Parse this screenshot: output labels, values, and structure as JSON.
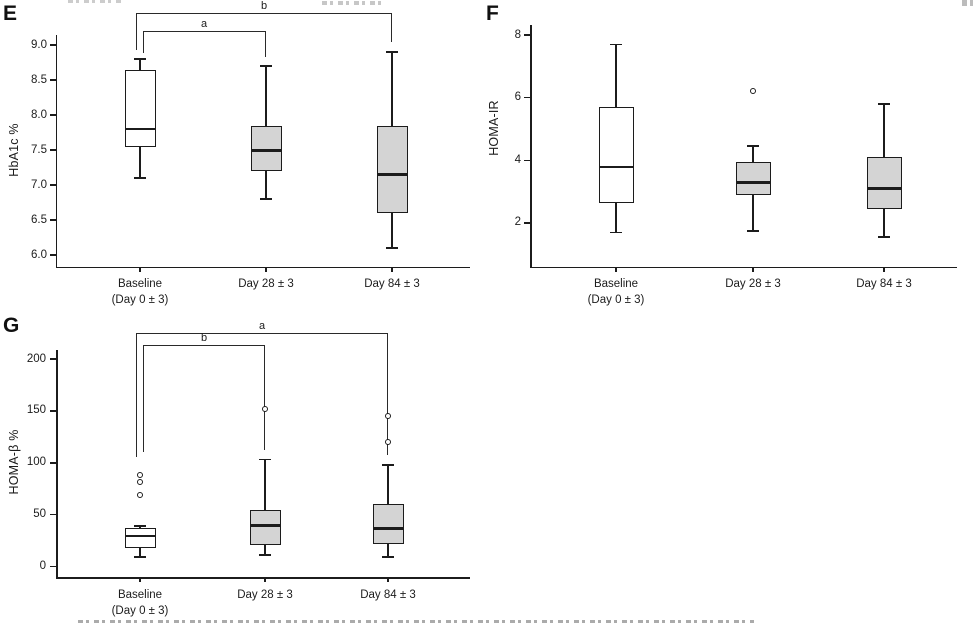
{
  "figure": {
    "style": {
      "background": "#ffffff",
      "line_color": "#1c1c1c",
      "box_fill_white": "#ffffff",
      "box_fill_gray": "#d4d4d4"
    }
  },
  "chart_data": [
    {
      "type": "box",
      "panel_label": "E",
      "title": "",
      "ylabel": "HbA1c %",
      "ylim": [
        5.85,
        9.15
      ],
      "grid": false,
      "y_ticks": [
        9.0,
        8.5,
        8.0,
        7.5,
        7.0,
        6.5,
        6.0
      ],
      "y_tick_labels": [
        "9.0",
        "8.5",
        "8.0",
        "7.5",
        "7.0",
        "6.5",
        "6.0"
      ],
      "categories": [
        {
          "lines": [
            "Baseline",
            "(Day 0 ± 3)"
          ]
        },
        {
          "lines": [
            "Day 28 ± 3"
          ]
        },
        {
          "lines": [
            "Day 84 ± 3"
          ]
        }
      ],
      "boxes": [
        {
          "category": "Baseline (Day 0 ± 3)",
          "fill": "#ffffff",
          "whisker_low": 7.1,
          "q1": 7.55,
          "median": 7.8,
          "q3": 8.65,
          "whisker_high": 8.8,
          "outliers": []
        },
        {
          "category": "Day 28 ± 3",
          "fill": "#d4d4d4",
          "whisker_low": 6.8,
          "q1": 7.2,
          "median": 7.5,
          "q3": 7.85,
          "whisker_high": 8.7,
          "outliers": []
        },
        {
          "category": "Day 84 ± 3",
          "fill": "#d4d4d4",
          "whisker_low": 6.1,
          "q1": 6.6,
          "median": 7.15,
          "q3": 7.85,
          "whisker_high": 8.9,
          "outliers": []
        }
      ],
      "significance_brackets": [
        {
          "label": "b",
          "between": [
            "Baseline (Day 0 ± 3)",
            "Day 84 ± 3"
          ]
        },
        {
          "label": "a",
          "between": [
            "Baseline (Day 0 ± 3)",
            "Day 28 ± 3"
          ]
        }
      ]
    },
    {
      "type": "box",
      "panel_label": "F",
      "title": "",
      "ylabel": "HOMA-IR",
      "ylim": [
        0.6,
        8.3
      ],
      "grid": false,
      "y_ticks": [
        8,
        6,
        4,
        2
      ],
      "y_tick_labels": [
        "8",
        "6",
        "4",
        "2"
      ],
      "categories": [
        {
          "lines": [
            "Baseline",
            "(Day 0 ± 3)"
          ]
        },
        {
          "lines": [
            "Day 28 ± 3"
          ]
        },
        {
          "lines": [
            "Day 84 ± 3"
          ]
        }
      ],
      "boxes": [
        {
          "category": "Baseline (Day 0 ± 3)",
          "fill": "#ffffff",
          "whisker_low": 1.7,
          "q1": 2.65,
          "median": 3.8,
          "q3": 5.7,
          "whisker_high": 7.7,
          "outliers": []
        },
        {
          "category": "Day 28 ± 3",
          "fill": "#d4d4d4",
          "whisker_low": 1.75,
          "q1": 2.9,
          "median": 3.3,
          "q3": 3.95,
          "whisker_high": 4.45,
          "outliers": [
            6.2
          ]
        },
        {
          "category": "Day 84 ± 3",
          "fill": "#d4d4d4",
          "whisker_low": 1.55,
          "q1": 2.45,
          "median": 3.1,
          "q3": 4.1,
          "whisker_high": 5.8,
          "outliers": []
        }
      ],
      "significance_brackets": []
    },
    {
      "type": "box",
      "panel_label": "G",
      "title": "",
      "ylabel": "HOMA-β %",
      "ylim": [
        -10,
        209
      ],
      "grid": false,
      "y_ticks": [
        200,
        150,
        100,
        50,
        0
      ],
      "y_tick_labels": [
        "200",
        "150",
        "100",
        "50",
        "0"
      ],
      "categories": [
        {
          "lines": [
            "Baseline",
            "(Day 0 ± 3)"
          ]
        },
        {
          "lines": [
            "Day 28 ± 3"
          ]
        },
        {
          "lines": [
            "Day 84 ± 3"
          ]
        }
      ],
      "boxes": [
        {
          "category": "Baseline (Day 0 ± 3)",
          "fill": "#ffffff",
          "whisker_low": 9,
          "q1": 18,
          "median": 29,
          "q3": 37,
          "whisker_high": 39,
          "outliers": [
            69,
            81,
            88
          ]
        },
        {
          "category": "Day 28 ± 3",
          "fill": "#d4d4d4",
          "whisker_low": 11,
          "q1": 21,
          "median": 40,
          "q3": 54,
          "whisker_high": 103,
          "outliers": [
            151
          ]
        },
        {
          "category": "Day 84 ± 3",
          "fill": "#d4d4d4",
          "whisker_low": 9,
          "q1": 22,
          "median": 37,
          "q3": 60,
          "whisker_high": 98,
          "outliers": [
            120,
            145
          ]
        }
      ],
      "significance_brackets": [
        {
          "label": "a",
          "between": [
            "Baseline (Day 0 ± 3)",
            "Day 84 ± 3"
          ]
        },
        {
          "label": "b",
          "between": [
            "Baseline (Day 0 ± 3)",
            "Day 28 ± 3"
          ]
        }
      ]
    }
  ]
}
